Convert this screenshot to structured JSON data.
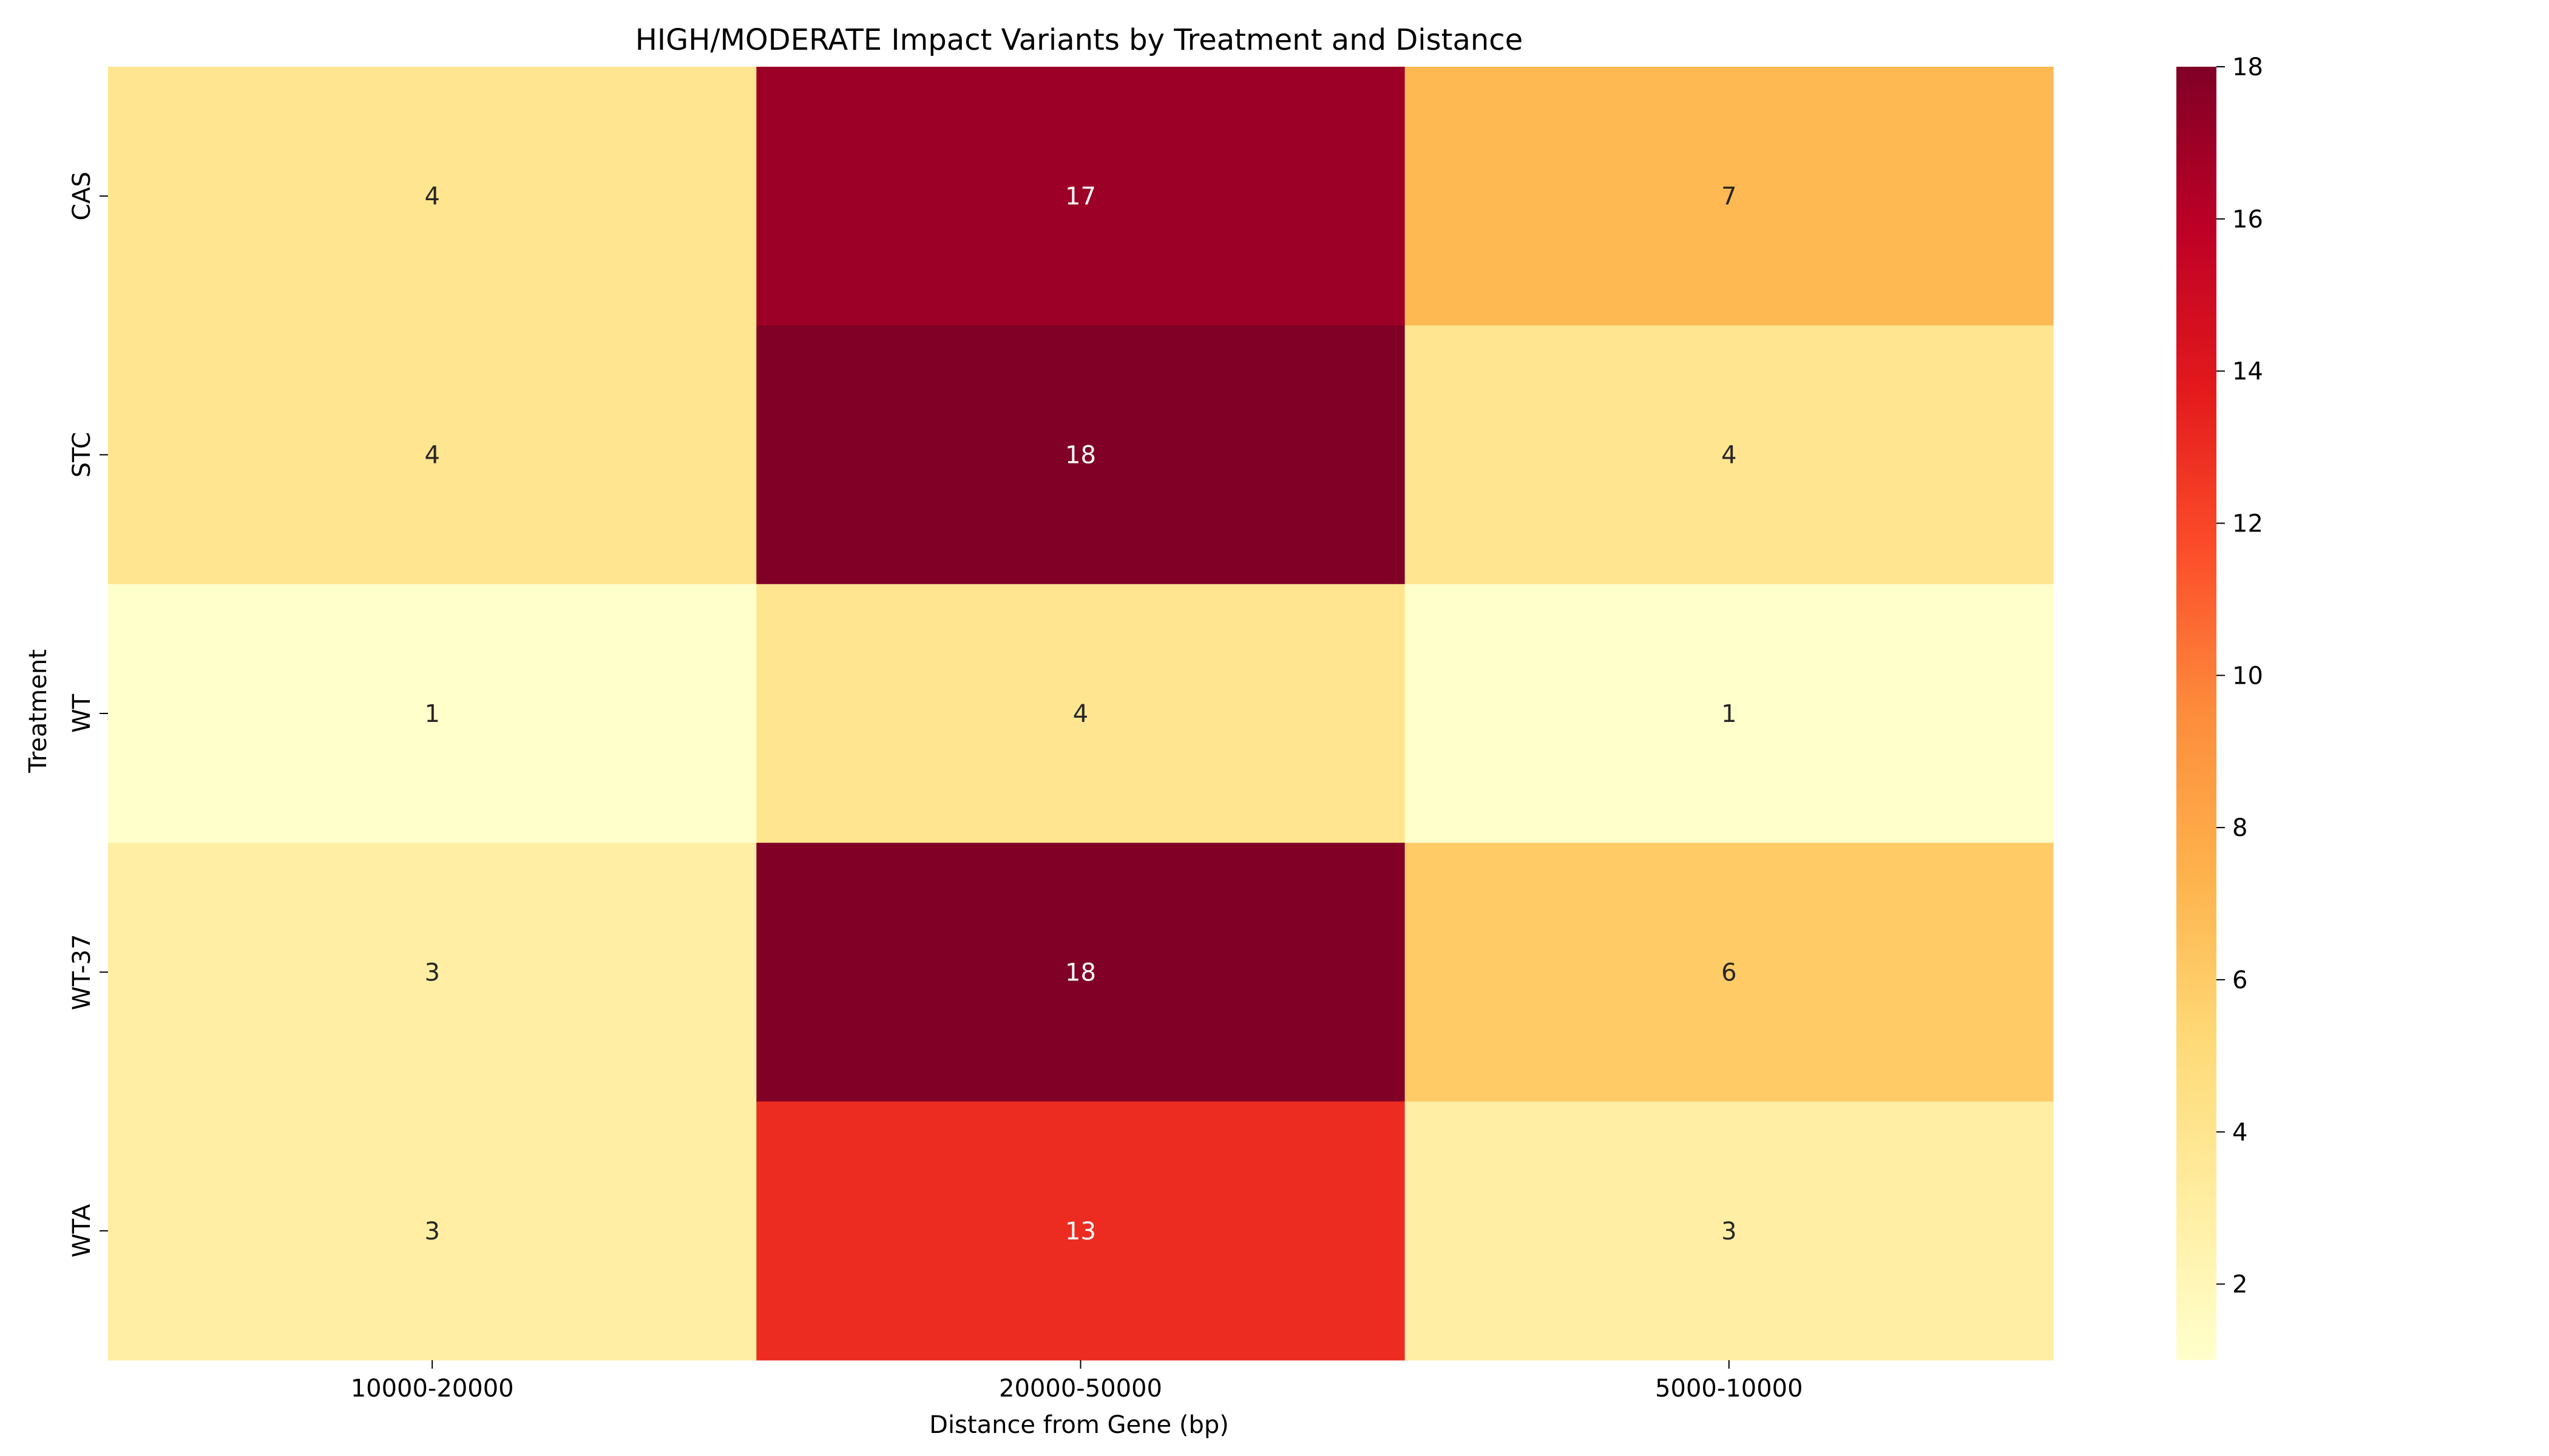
{
  "chart_data": {
    "type": "heatmap",
    "title": "HIGH/MODERATE Impact Variants by Treatment and Distance",
    "xlabel": "Distance from Gene (bp)",
    "ylabel": "Treatment",
    "x_categories": [
      "10000-20000",
      "20000-50000",
      "5000-10000"
    ],
    "y_categories": [
      "CAS",
      "STC",
      "WT",
      "WT-37",
      "WTA"
    ],
    "values": [
      [
        4,
        17,
        7
      ],
      [
        4,
        18,
        4
      ],
      [
        1,
        4,
        1
      ],
      [
        3,
        18,
        6
      ],
      [
        3,
        13,
        3
      ]
    ],
    "annotated": true,
    "colormap": "YlOrRd",
    "colorbar": {
      "min": 1,
      "max": 18,
      "ticks": [
        2,
        4,
        6,
        8,
        10,
        12,
        14,
        16,
        18
      ]
    }
  }
}
